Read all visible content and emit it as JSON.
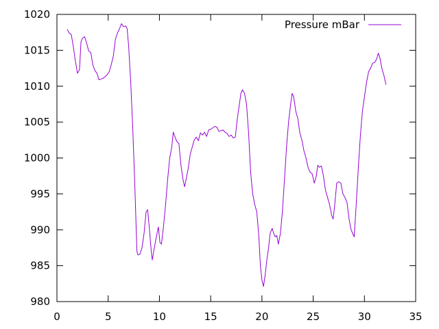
{
  "chart_data": {
    "type": "line",
    "title": "",
    "xlabel": "",
    "ylabel": "",
    "xlim": [
      0,
      35
    ],
    "ylim": [
      980,
      1020
    ],
    "x_ticks": [
      0,
      5,
      10,
      15,
      20,
      25,
      30,
      35
    ],
    "y_ticks": [
      980,
      985,
      990,
      995,
      1000,
      1005,
      1010,
      1015,
      1020
    ],
    "x_tick_labels": [
      "0",
      "5",
      "10",
      "15",
      "20",
      "25",
      "30",
      "35"
    ],
    "y_tick_labels": [
      "980",
      "985",
      "990",
      "995",
      "1000",
      "1005",
      "1010",
      "1015",
      "1020"
    ],
    "grid": false,
    "legend_position": "top-right",
    "colors": {
      "axis": "#000000",
      "series": "#9400d3"
    },
    "series": [
      {
        "name": "Pressure mBar",
        "points": [
          [
            1.0,
            1017.9
          ],
          [
            1.2,
            1017.4
          ],
          [
            1.4,
            1017.2
          ],
          [
            1.6,
            1015.5
          ],
          [
            1.8,
            1013.5
          ],
          [
            2.0,
            1011.8
          ],
          [
            2.2,
            1012.3
          ],
          [
            2.35,
            1016.2
          ],
          [
            2.5,
            1016.7
          ],
          [
            2.7,
            1016.9
          ],
          [
            2.9,
            1016.0
          ],
          [
            3.1,
            1014.9
          ],
          [
            3.3,
            1014.7
          ],
          [
            3.5,
            1013.0
          ],
          [
            3.7,
            1012.2
          ],
          [
            3.9,
            1011.8
          ],
          [
            4.1,
            1010.9
          ],
          [
            4.3,
            1011.0
          ],
          [
            4.5,
            1011.1
          ],
          [
            4.7,
            1011.3
          ],
          [
            4.9,
            1011.6
          ],
          [
            5.1,
            1012.0
          ],
          [
            5.3,
            1013.0
          ],
          [
            5.5,
            1014.2
          ],
          [
            5.7,
            1016.5
          ],
          [
            5.9,
            1017.4
          ],
          [
            6.1,
            1018.0
          ],
          [
            6.3,
            1018.7
          ],
          [
            6.5,
            1018.3
          ],
          [
            6.7,
            1018.4
          ],
          [
            6.85,
            1018.0
          ],
          [
            7.0,
            1015.5
          ],
          [
            7.2,
            1010.5
          ],
          [
            7.4,
            1004.0
          ],
          [
            7.6,
            996.0
          ],
          [
            7.8,
            987.0
          ],
          [
            7.9,
            986.5
          ],
          [
            8.1,
            986.6
          ],
          [
            8.3,
            987.5
          ],
          [
            8.5,
            989.5
          ],
          [
            8.7,
            992.5
          ],
          [
            8.85,
            992.8
          ],
          [
            9.0,
            990.5
          ],
          [
            9.2,
            987.0
          ],
          [
            9.3,
            985.8
          ],
          [
            9.5,
            987.5
          ],
          [
            9.7,
            989.0
          ],
          [
            9.9,
            990.4
          ],
          [
            10.05,
            988.2
          ],
          [
            10.2,
            988.0
          ],
          [
            10.4,
            990.5
          ],
          [
            10.6,
            993.5
          ],
          [
            10.8,
            997.0
          ],
          [
            11.0,
            1000.0
          ],
          [
            11.2,
            1001.5
          ],
          [
            11.35,
            1003.6
          ],
          [
            11.5,
            1003.0
          ],
          [
            11.7,
            1002.3
          ],
          [
            11.9,
            1002.0
          ],
          [
            12.1,
            999.0
          ],
          [
            12.3,
            997.0
          ],
          [
            12.45,
            996.0
          ],
          [
            12.6,
            997.0
          ],
          [
            12.8,
            998.5
          ],
          [
            13.0,
            1000.5
          ],
          [
            13.2,
            1001.5
          ],
          [
            13.4,
            1002.5
          ],
          [
            13.6,
            1002.9
          ],
          [
            13.8,
            1002.4
          ],
          [
            14.0,
            1003.5
          ],
          [
            14.2,
            1003.2
          ],
          [
            14.4,
            1003.6
          ],
          [
            14.6,
            1003.0
          ],
          [
            14.8,
            1003.9
          ],
          [
            15.0,
            1004.0
          ],
          [
            15.2,
            1004.2
          ],
          [
            15.4,
            1004.4
          ],
          [
            15.6,
            1004.3
          ],
          [
            15.8,
            1003.7
          ],
          [
            16.0,
            1003.8
          ],
          [
            16.2,
            1003.9
          ],
          [
            16.4,
            1003.6
          ],
          [
            16.6,
            1003.4
          ],
          [
            16.8,
            1003.0
          ],
          [
            17.0,
            1003.2
          ],
          [
            17.2,
            1002.8
          ],
          [
            17.4,
            1002.9
          ],
          [
            17.6,
            1005.5
          ],
          [
            17.8,
            1007.5
          ],
          [
            17.95,
            1009.0
          ],
          [
            18.1,
            1009.5
          ],
          [
            18.3,
            1009.0
          ],
          [
            18.5,
            1007.5
          ],
          [
            18.7,
            1003.5
          ],
          [
            18.9,
            998.0
          ],
          [
            19.1,
            995.0
          ],
          [
            19.3,
            993.5
          ],
          [
            19.5,
            992.5
          ],
          [
            19.7,
            989.0
          ],
          [
            19.85,
            985.0
          ],
          [
            20.0,
            983.0
          ],
          [
            20.15,
            982.1
          ],
          [
            20.3,
            983.5
          ],
          [
            20.5,
            986.0
          ],
          [
            20.65,
            987.5
          ],
          [
            20.8,
            989.5
          ],
          [
            21.0,
            990.2
          ],
          [
            21.15,
            989.5
          ],
          [
            21.3,
            989.0
          ],
          [
            21.45,
            989.2
          ],
          [
            21.6,
            988.0
          ],
          [
            21.8,
            989.5
          ],
          [
            22.0,
            992.5
          ],
          [
            22.2,
            997.0
          ],
          [
            22.4,
            1001.5
          ],
          [
            22.6,
            1005.0
          ],
          [
            22.8,
            1007.5
          ],
          [
            22.95,
            1009.0
          ],
          [
            23.1,
            1008.5
          ],
          [
            23.3,
            1006.5
          ],
          [
            23.5,
            1005.5
          ],
          [
            23.7,
            1003.5
          ],
          [
            23.9,
            1002.5
          ],
          [
            24.1,
            1001.0
          ],
          [
            24.3,
            1000.0
          ],
          [
            24.5,
            998.7
          ],
          [
            24.7,
            998.0
          ],
          [
            24.9,
            997.8
          ],
          [
            25.1,
            996.5
          ],
          [
            25.3,
            997.5
          ],
          [
            25.45,
            999.0
          ],
          [
            25.6,
            998.7
          ],
          [
            25.8,
            998.9
          ],
          [
            26.0,
            997.5
          ],
          [
            26.2,
            995.5
          ],
          [
            26.4,
            994.5
          ],
          [
            26.6,
            993.5
          ],
          [
            26.8,
            992.0
          ],
          [
            26.95,
            991.5
          ],
          [
            27.1,
            993.5
          ],
          [
            27.3,
            996.5
          ],
          [
            27.5,
            996.7
          ],
          [
            27.7,
            996.5
          ],
          [
            27.9,
            995.0
          ],
          [
            28.1,
            994.5
          ],
          [
            28.3,
            993.8
          ],
          [
            28.5,
            991.5
          ],
          [
            28.7,
            990.0
          ],
          [
            28.85,
            989.5
          ],
          [
            29.0,
            989.0
          ],
          [
            29.2,
            993.5
          ],
          [
            29.4,
            998.5
          ],
          [
            29.6,
            1003.0
          ],
          [
            29.8,
            1006.5
          ],
          [
            30.0,
            1008.5
          ],
          [
            30.2,
            1010.5
          ],
          [
            30.4,
            1012.0
          ],
          [
            30.6,
            1012.5
          ],
          [
            30.8,
            1013.2
          ],
          [
            31.0,
            1013.3
          ],
          [
            31.2,
            1013.8
          ],
          [
            31.35,
            1014.6
          ],
          [
            31.5,
            1014.0
          ],
          [
            31.7,
            1012.5
          ],
          [
            31.9,
            1011.5
          ],
          [
            32.1,
            1010.2
          ]
        ]
      }
    ]
  }
}
